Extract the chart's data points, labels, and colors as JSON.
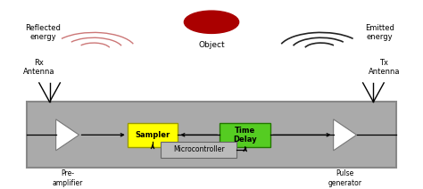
{
  "bg_color": "#ffffff",
  "box_bg": "#aaaaaa",
  "box_outline": "#888888",
  "sampler_color": "#ffff00",
  "timedelay_color": "#55cc22",
  "mc_color": "#bbbbbb",
  "object_color": "#aa0000",
  "reflected_color": "#cc7777",
  "emitted_color": "#222222",
  "arrow_color": "#000000",
  "labels": {
    "object": "Object",
    "reflected": "Reflected\nenergy",
    "emitted": "Emitted\nenergy",
    "rx": "Rx\nAntenna",
    "tx": "Tx\nAntenna",
    "preamp": "Pre-\namplifier",
    "sampler": "Sampler",
    "timedelay": "Time\nDelay",
    "microcontroller": "Microcontroller",
    "pulse": "Pulse\ngenerator"
  },
  "fig_w": 4.74,
  "fig_h": 2.12,
  "dpi": 100
}
